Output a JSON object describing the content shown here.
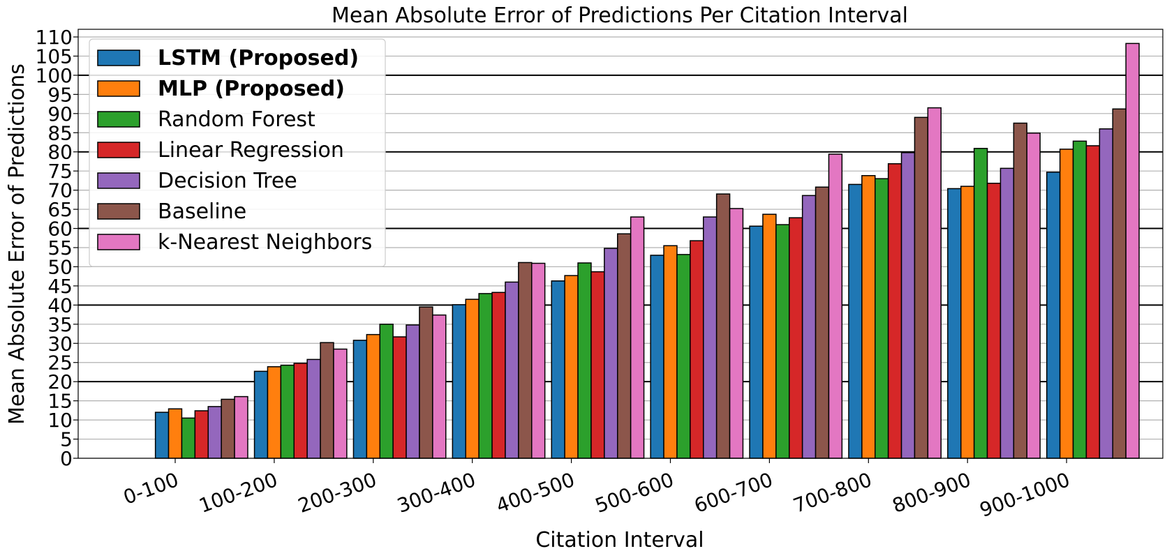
{
  "chart_data": {
    "type": "bar",
    "title": "Mean Absolute Error of Predictions Per Citation Interval",
    "xlabel": "Citation Interval",
    "ylabel": "Mean Absolute Error of Predictions",
    "ylim": [
      0,
      112
    ],
    "yticks": [
      0,
      5,
      10,
      15,
      20,
      25,
      30,
      35,
      40,
      45,
      50,
      55,
      60,
      65,
      70,
      75,
      80,
      85,
      90,
      95,
      100,
      105,
      110
    ],
    "grid": "horizontal, thicker every 20",
    "legend_position": "top-left",
    "categories": [
      "0-100",
      "100-200",
      "200-300",
      "300-400",
      "400-500",
      "500-600",
      "600-700",
      "700-800",
      "800-900",
      "900-1000"
    ],
    "series": [
      {
        "name": "LSTM (Proposed)",
        "bold": true,
        "color": "#1f77b4",
        "values": [
          12.0,
          22.7,
          30.8,
          40.1,
          46.3,
          53.0,
          60.6,
          71.5,
          70.4,
          74.7
        ]
      },
      {
        "name": "MLP (Proposed)",
        "bold": true,
        "color": "#ff7f0e",
        "values": [
          12.9,
          23.9,
          32.3,
          41.5,
          47.7,
          55.5,
          63.7,
          73.8,
          71.0,
          80.7
        ]
      },
      {
        "name": "Random Forest",
        "bold": false,
        "color": "#2ca02c",
        "values": [
          10.5,
          24.3,
          35.0,
          43.0,
          51.0,
          53.2,
          61.0,
          73.0,
          80.9,
          82.8
        ]
      },
      {
        "name": "Linear Regression",
        "bold": false,
        "color": "#d62728",
        "values": [
          12.4,
          24.8,
          31.7,
          43.3,
          48.7,
          56.8,
          62.8,
          76.9,
          71.8,
          81.6
        ]
      },
      {
        "name": "Decision Tree",
        "bold": false,
        "color": "#9467bd",
        "values": [
          13.5,
          25.8,
          34.8,
          46.0,
          54.8,
          63.0,
          68.6,
          79.8,
          75.7,
          86.0
        ]
      },
      {
        "name": "Baseline",
        "bold": false,
        "color": "#8c564b",
        "values": [
          15.4,
          30.2,
          39.5,
          51.1,
          58.6,
          69.0,
          70.8,
          89.0,
          87.5,
          91.2
        ]
      },
      {
        "name": "k-Nearest Neighbors",
        "bold": false,
        "color": "#e377c2",
        "values": [
          16.1,
          28.5,
          37.4,
          50.9,
          63.0,
          65.2,
          79.4,
          91.5,
          84.9,
          108.3
        ]
      }
    ]
  }
}
